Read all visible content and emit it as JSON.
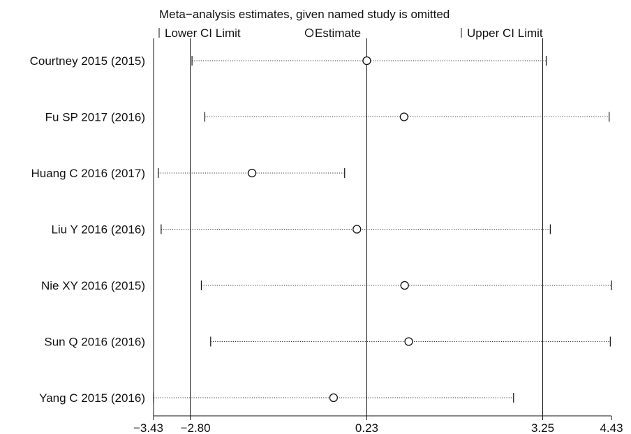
{
  "chart_data": {
    "type": "scatter",
    "title": "Meta−analysis estimates, given named study is omitted",
    "legend": {
      "lower": "Lower CI Limit",
      "estimate": "Estimate",
      "upper": "Upper CI Limit"
    },
    "xlim": [
      -3.43,
      4.43
    ],
    "xticks": [
      "-3.43",
      "-2.80",
      "0.23",
      "3.25",
      "4.43"
    ],
    "xtick_labels": [
      "−3.43",
      "−2.80",
      "0.23",
      "3.25",
      "4.43"
    ],
    "reference_lines": [
      -2.8,
      0.23,
      3.25
    ],
    "studies": [
      {
        "name": "Courtney 2015 (2015)",
        "lower": -2.77,
        "estimate": 0.23,
        "upper": 3.31
      },
      {
        "name": "Fu SP 2017 (2016)",
        "lower": -2.55,
        "estimate": 0.87,
        "upper": 4.39
      },
      {
        "name": "Huang C 2016 (2017)",
        "lower": -3.35,
        "estimate": -1.74,
        "upper": -0.15
      },
      {
        "name": "Liu Y 2016 (2016)",
        "lower": -3.3,
        "estimate": 0.06,
        "upper": 3.38
      },
      {
        "name": "Nie XY 2016 (2015)",
        "lower": -2.61,
        "estimate": 0.88,
        "upper": 4.43
      },
      {
        "name": "Sun Q 2016 (2016)",
        "lower": -2.45,
        "estimate": 0.95,
        "upper": 4.41
      },
      {
        "name": "Yang C 2015 (2016)",
        "lower": -3.43,
        "estimate": -0.34,
        "upper": 2.75
      }
    ]
  }
}
